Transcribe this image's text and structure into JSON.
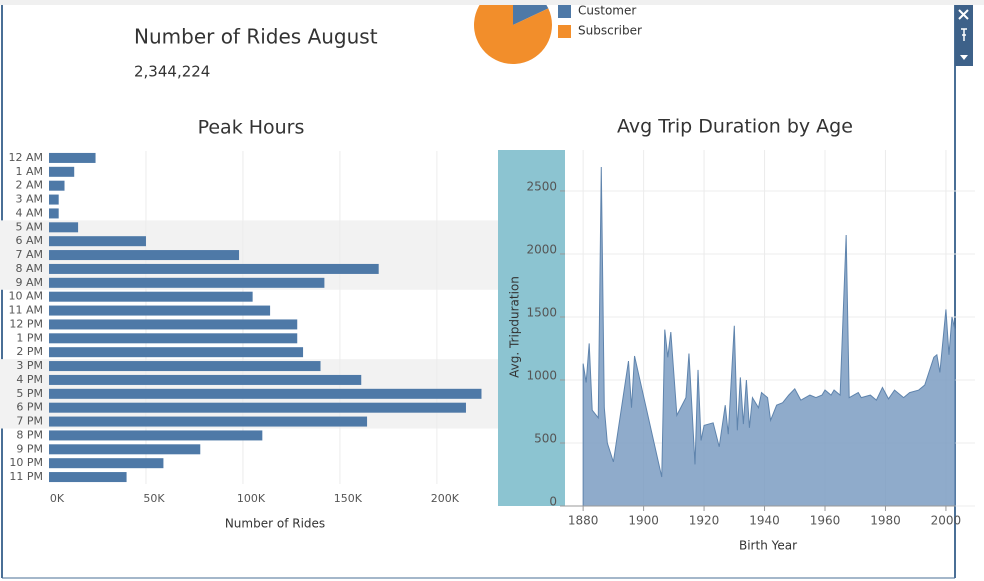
{
  "kpi": {
    "title": "Number of Rides August",
    "value": "2,344,224"
  },
  "chart_data": [
    {
      "type": "pie",
      "categories": [
        "Customer",
        "Subscriber"
      ],
      "values": [
        18,
        82
      ],
      "colors": [
        "#4e79a7",
        "#f28e2b"
      ],
      "legend": "right"
    },
    {
      "type": "bar",
      "title": "Peak Hours",
      "x_label": "Number of Rides",
      "orientation": "horizontal",
      "color": "#4e79a7",
      "grid": true,
      "categories": [
        "12 AM",
        "1 AM",
        "2 AM",
        "3 AM",
        "4 AM",
        "5 AM",
        "6 AM",
        "7 AM",
        "8 AM",
        "9 AM",
        "10 AM",
        "11 AM",
        "12 PM",
        "1 PM",
        "2 PM",
        "3 PM",
        "4 PM",
        "5 PM",
        "6 PM",
        "7 PM",
        "8 PM",
        "9 PM",
        "10 PM",
        "11 PM"
      ],
      "values": [
        24000,
        13000,
        8000,
        5000,
        5000,
        15000,
        50000,
        98000,
        170000,
        142000,
        105000,
        114000,
        128000,
        128000,
        131000,
        140000,
        161000,
        223000,
        215000,
        164000,
        110000,
        78000,
        59000,
        40000
      ],
      "xlim": [
        0,
        231000
      ],
      "xticks": [
        {
          "value": 0,
          "label": "0K"
        },
        {
          "value": 50000,
          "label": "50K"
        },
        {
          "value": 100000,
          "label": "100K"
        },
        {
          "value": 150000,
          "label": "150K"
        },
        {
          "value": 200000,
          "label": "200K"
        }
      ]
    },
    {
      "type": "area",
      "title": "Avg Trip Duration by Age",
      "x_label": "Birth Year",
      "y_label": "Avg. Tripduration",
      "color": "#7b9cc2",
      "grid": true,
      "x": [
        1880,
        1881,
        1882,
        1883,
        1885,
        1886,
        1887,
        1888,
        1890,
        1895,
        1896,
        1897,
        1906,
        1907,
        1908,
        1909,
        1911,
        1914,
        1915,
        1917,
        1918,
        1919,
        1920,
        1923,
        1925,
        1927,
        1928,
        1930,
        1931,
        1932,
        1933,
        1934,
        1935,
        1936,
        1938,
        1939,
        1941,
        1942,
        1944,
        1946,
        1948,
        1950,
        1952,
        1955,
        1957,
        1959,
        1960,
        1962,
        1963,
        1965,
        1967,
        1968,
        1971,
        1972,
        1975,
        1977,
        1979,
        1981,
        1983,
        1986,
        1988,
        1991,
        1993,
        1996,
        1997,
        1998,
        2000,
        2001,
        2002,
        2003
      ],
      "values": [
        1130,
        980,
        1290,
        760,
        700,
        2690,
        780,
        500,
        350,
        1150,
        780,
        1190,
        230,
        1400,
        1180,
        1380,
        720,
        860,
        1210,
        330,
        1080,
        520,
        640,
        660,
        470,
        800,
        570,
        1430,
        600,
        1020,
        650,
        1000,
        620,
        860,
        780,
        900,
        860,
        680,
        800,
        820,
        880,
        930,
        840,
        880,
        860,
        880,
        920,
        880,
        920,
        880,
        2150,
        860,
        900,
        860,
        880,
        840,
        940,
        850,
        920,
        860,
        900,
        920,
        960,
        1180,
        1200,
        1060,
        1560,
        1200,
        1500,
        1400
      ],
      "xlim": [
        1874,
        2003
      ],
      "xticks": [
        1880,
        1900,
        1920,
        1940,
        1960,
        1980,
        2000
      ],
      "ylim": [
        0,
        2825
      ],
      "yticks": [
        0,
        500,
        1000,
        1500,
        2000,
        2500
      ]
    }
  ]
}
